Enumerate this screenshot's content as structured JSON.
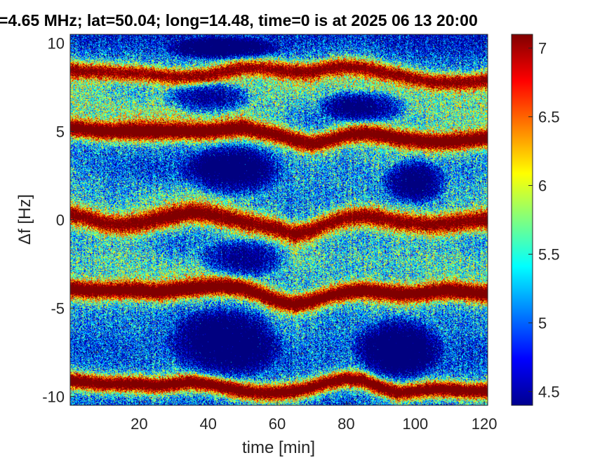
{
  "chart_data": {
    "type": "heatmap",
    "title": "=4.65 MHz;  lat=50.04; long=14.48, time=0 is at 2025 06 13 20:00",
    "xlabel": "time [min]",
    "ylabel": "Δf [Hz]",
    "xlim": [
      0,
      121
    ],
    "ylim": [
      -10.5,
      10.5
    ],
    "x_ticks": [
      20,
      40,
      60,
      80,
      100,
      120
    ],
    "y_ticks": [
      10,
      5,
      0,
      -5,
      -10
    ],
    "colorbar": {
      "colormap": "jet",
      "range": [
        4.4,
        7.1
      ],
      "ticks": [
        4.5,
        5,
        5.5,
        6,
        6.5,
        7
      ]
    },
    "grid": false,
    "background_value": 4.45,
    "ridges": [
      {
        "t": [
          0,
          5,
          10,
          15,
          20,
          25,
          30,
          35,
          40,
          45,
          50,
          55,
          60,
          65,
          70,
          75,
          80,
          85,
          90,
          95,
          100,
          105,
          110,
          115,
          120
        ],
        "f": [
          8.5,
          8.4,
          8.4,
          8.3,
          8.3,
          8.2,
          8.1,
          8.1,
          8.2,
          8.4,
          8.6,
          8.6,
          8.5,
          8.4,
          8.4,
          8.6,
          8.7,
          8.6,
          8.4,
          8.2,
          8.0,
          7.8,
          7.8,
          7.8,
          7.9
        ],
        "peak": 6.5,
        "width": 0.45
      },
      {
        "t": [
          0,
          5,
          10,
          15,
          20,
          25,
          30,
          35,
          40,
          45,
          50,
          55,
          60,
          65,
          70,
          75,
          80,
          85,
          90,
          95,
          100,
          105,
          110,
          115,
          120
        ],
        "f": [
          5.2,
          5.1,
          5.0,
          5.0,
          5.0,
          5.0,
          5.0,
          5.0,
          5.0,
          5.1,
          5.2,
          5.0,
          4.8,
          4.5,
          4.3,
          4.5,
          4.8,
          4.9,
          4.8,
          4.6,
          4.5,
          4.4,
          4.4,
          4.5,
          4.6
        ],
        "peak": 6.9,
        "width": 0.5
      },
      {
        "t": [
          0,
          5,
          10,
          15,
          20,
          25,
          30,
          35,
          40,
          45,
          50,
          55,
          60,
          65,
          70,
          75,
          80,
          85,
          90,
          95,
          100,
          105,
          110,
          115,
          120
        ],
        "f": [
          0.3,
          0.1,
          -0.2,
          -0.3,
          -0.2,
          0.0,
          0.2,
          0.4,
          0.3,
          0.1,
          -0.1,
          -0.3,
          -0.5,
          -0.8,
          -0.6,
          -0.2,
          0.1,
          0.2,
          0.1,
          -0.1,
          -0.2,
          -0.3,
          -0.2,
          -0.1,
          0.0
        ],
        "peak": 6.7,
        "width": 0.55
      },
      {
        "t": [
          0,
          5,
          10,
          15,
          20,
          25,
          30,
          35,
          40,
          45,
          50,
          55,
          60,
          65,
          70,
          75,
          80,
          85,
          90,
          95,
          100,
          105,
          110,
          115,
          120
        ],
        "f": [
          -3.9,
          -4.0,
          -4.0,
          -4.0,
          -4.0,
          -4.1,
          -4.0,
          -3.9,
          -3.8,
          -3.8,
          -3.9,
          -4.2,
          -4.6,
          -4.8,
          -4.6,
          -4.3,
          -4.1,
          -4.0,
          -4.1,
          -4.2,
          -4.2,
          -4.1,
          -4.0,
          -4.1,
          -4.2
        ],
        "peak": 7.0,
        "width": 0.5
      },
      {
        "t": [
          0,
          5,
          10,
          15,
          20,
          25,
          30,
          35,
          40,
          45,
          50,
          55,
          60,
          65,
          70,
          75,
          80,
          85,
          90,
          95,
          100,
          105,
          110,
          115,
          120
        ],
        "f": [
          -9.1,
          -9.2,
          -9.3,
          -9.3,
          -9.3,
          -9.4,
          -9.3,
          -9.2,
          -9.3,
          -9.5,
          -9.7,
          -9.8,
          -9.8,
          -9.7,
          -9.5,
          -9.2,
          -9.0,
          -9.1,
          -9.5,
          -9.8,
          -9.7,
          -9.6,
          -9.6,
          -9.7,
          -9.7
        ],
        "peak": 7.0,
        "width": 0.45
      }
    ],
    "halo_bands": [
      {
        "t": [
          0,
          10,
          20,
          30,
          40,
          50,
          60,
          70,
          80,
          90,
          100,
          110,
          120
        ],
        "f": [
          7.0,
          6.5,
          6.0,
          6.2,
          6.5,
          6.8,
          7.0,
          7.2,
          7.5,
          7.0,
          6.4,
          6.2,
          6.3
        ],
        "peak": 5.3,
        "width": 1.3
      },
      {
        "t": [
          0,
          10,
          20,
          30,
          40,
          50,
          60,
          70,
          80,
          90,
          100,
          110,
          120
        ],
        "f": [
          2.5,
          2.0,
          1.5,
          1.2,
          1.5,
          2.0,
          2.2,
          2.0,
          2.5,
          3.0,
          2.5,
          2.0,
          2.0
        ],
        "peak": 5.1,
        "width": 1.4
      },
      {
        "t": [
          0,
          10,
          20,
          30,
          40,
          50,
          60,
          70,
          80,
          90,
          100,
          110,
          120
        ],
        "f": [
          -2.0,
          -2.2,
          -2.5,
          -2.8,
          -2.5,
          -2.2,
          -2.3,
          -2.5,
          -2.2,
          -2.0,
          -2.3,
          -2.5,
          -2.4
        ],
        "peak": 5.2,
        "width": 1.2
      },
      {
        "t": [
          0,
          10,
          20,
          30,
          40,
          50,
          60,
          70,
          80,
          90,
          100,
          110,
          120
        ],
        "f": [
          -6.0,
          -6.2,
          -6.5,
          -7.0,
          -7.0,
          -6.8,
          -6.6,
          -6.8,
          -6.5,
          -6.0,
          -6.2,
          -6.5,
          -6.5
        ],
        "peak": 5.0,
        "width": 1.3
      }
    ],
    "shadow_regions": [
      {
        "t": 45,
        "f": -7.0,
        "rt": 18,
        "rf": 2.2
      },
      {
        "t": 95,
        "f": -7.3,
        "rt": 14,
        "rf": 2.0
      },
      {
        "t": 47,
        "f": 2.8,
        "rt": 16,
        "rf": 1.6
      },
      {
        "t": 100,
        "f": 2.2,
        "rt": 10,
        "rf": 1.4
      },
      {
        "t": 40,
        "f": 6.9,
        "rt": 14,
        "rf": 1.0
      },
      {
        "t": 85,
        "f": 6.4,
        "rt": 14,
        "rf": 1.0
      },
      {
        "t": 45,
        "f": 9.7,
        "rt": 18,
        "rf": 0.7
      },
      {
        "t": 50,
        "f": -2.2,
        "rt": 14,
        "rf": 1.2
      }
    ]
  }
}
